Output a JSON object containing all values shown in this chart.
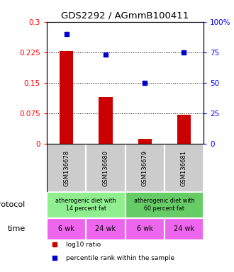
{
  "title": "GDS2292 / AGmmB100411",
  "samples": [
    "GSM136678",
    "GSM136680",
    "GSM136679",
    "GSM136681"
  ],
  "log10_ratio": [
    0.228,
    0.115,
    0.013,
    0.072
  ],
  "percentile_rank_pct": [
    90,
    73,
    50,
    75
  ],
  "ylim_left": [
    0,
    0.3
  ],
  "ylim_right": [
    0,
    100
  ],
  "yticks_left": [
    0,
    0.075,
    0.15,
    0.225,
    0.3
  ],
  "yticks_right": [
    0,
    25,
    50,
    75,
    100
  ],
  "ytick_labels_left": [
    "0",
    "0.075",
    "0.15",
    "0.225",
    "0.3"
  ],
  "ytick_labels_right": [
    "0",
    "25",
    "50",
    "75",
    "100%"
  ],
  "bar_color": "#cc0000",
  "dot_color": "#0000cc",
  "protocol_groups": [
    {
      "label": "atherogenic diet with\n14 percent fat",
      "color": "#90ee90",
      "span": [
        0,
        2
      ]
    },
    {
      "label": "atherogenic diet with\n60 percent fat",
      "color": "#66cc66",
      "span": [
        2,
        4
      ]
    }
  ],
  "time_groups": [
    {
      "label": "6 wk",
      "color": "#ee66ee",
      "col": 0
    },
    {
      "label": "24 wk",
      "color": "#ee66ee",
      "col": 1
    },
    {
      "label": "6 wk",
      "color": "#ee66ee",
      "col": 2
    },
    {
      "label": "24 wk",
      "color": "#ee66ee",
      "col": 3
    }
  ],
  "sample_bg_color": "#cccccc",
  "legend_items": [
    {
      "color": "#cc0000",
      "label": "log10 ratio"
    },
    {
      "color": "#0000cc",
      "label": "percentile rank within the sample"
    }
  ],
  "protocol_label": "protocol",
  "time_label": "time",
  "arrow_color": "#999999",
  "bar_width": 0.35,
  "figsize": [
    3.3,
    3.84
  ],
  "dpi": 100
}
